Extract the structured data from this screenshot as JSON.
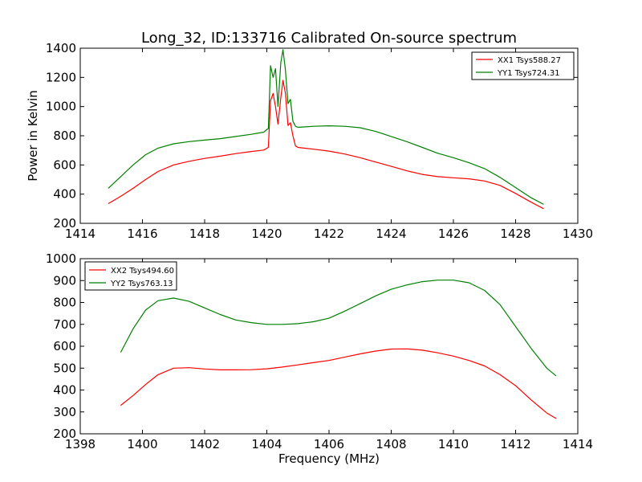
{
  "title": "Long_32, ID:133716 Calibrated On-source spectrum",
  "colors": {
    "xx": "#ff0000",
    "yy": "#008000",
    "axes": "#000000",
    "background": "#ffffff"
  },
  "chart_data": [
    {
      "type": "line",
      "title": "Long_32, ID:133716 Calibrated On-source spectrum",
      "xlabel": "",
      "ylabel": "Power in Kelvin",
      "xlim": [
        1414,
        1430
      ],
      "ylim": [
        200,
        1400
      ],
      "xticks": [
        "1414",
        "1416",
        "1418",
        "1420",
        "1422",
        "1424",
        "1426",
        "1428",
        "1430"
      ],
      "yticks": [
        "200",
        "400",
        "600",
        "800",
        "1000",
        "1200",
        "1400"
      ],
      "grid": false,
      "legend_position": "top-right",
      "series": [
        {
          "name": "XX1 Tsys588.27",
          "color": "#ff0000",
          "x": [
            1414.9,
            1415.3,
            1415.7,
            1416.1,
            1416.5,
            1417.0,
            1417.5,
            1418.0,
            1418.5,
            1419.0,
            1419.5,
            1419.9,
            1420.05,
            1420.12,
            1420.2,
            1420.28,
            1420.36,
            1420.45,
            1420.52,
            1420.6,
            1420.68,
            1420.76,
            1420.84,
            1420.92,
            1421.0,
            1421.5,
            1422.0,
            1422.5,
            1423.0,
            1423.5,
            1424.0,
            1424.5,
            1425.0,
            1425.5,
            1426.0,
            1426.5,
            1427.0,
            1427.5,
            1428.0,
            1428.5,
            1428.9
          ],
          "y": [
            335,
            385,
            440,
            500,
            555,
            600,
            625,
            645,
            660,
            678,
            692,
            702,
            720,
            1040,
            1090,
            1000,
            880,
            1060,
            1180,
            1090,
            870,
            890,
            800,
            730,
            720,
            708,
            695,
            675,
            650,
            620,
            590,
            560,
            535,
            520,
            512,
            505,
            490,
            460,
            405,
            345,
            300
          ]
        },
        {
          "name": "YY1 Tsys724.31",
          "color": "#008000",
          "x": [
            1414.9,
            1415.3,
            1415.7,
            1416.1,
            1416.5,
            1417.0,
            1417.5,
            1418.0,
            1418.5,
            1419.0,
            1419.5,
            1419.9,
            1420.05,
            1420.12,
            1420.2,
            1420.28,
            1420.36,
            1420.45,
            1420.52,
            1420.6,
            1420.68,
            1420.76,
            1420.84,
            1420.92,
            1421.0,
            1421.5,
            1422.0,
            1422.5,
            1423.0,
            1423.5,
            1424.0,
            1424.5,
            1425.0,
            1425.5,
            1426.0,
            1426.5,
            1427.0,
            1427.5,
            1428.0,
            1428.5,
            1428.9
          ],
          "y": [
            440,
            520,
            600,
            670,
            715,
            745,
            760,
            770,
            780,
            795,
            810,
            825,
            850,
            1280,
            1200,
            1260,
            1000,
            1300,
            1390,
            1250,
            1020,
            1050,
            900,
            865,
            858,
            865,
            868,
            865,
            855,
            830,
            795,
            760,
            720,
            680,
            650,
            615,
            575,
            515,
            445,
            375,
            330
          ]
        }
      ]
    },
    {
      "type": "line",
      "title": "",
      "xlabel": "Frequency (MHz)",
      "ylabel": "",
      "xlim": [
        1398,
        1414
      ],
      "ylim": [
        200,
        1000
      ],
      "xticks": [
        "1398",
        "1400",
        "1402",
        "1404",
        "1406",
        "1408",
        "1410",
        "1412",
        "1414"
      ],
      "yticks": [
        "200",
        "300",
        "400",
        "500",
        "600",
        "700",
        "800",
        "900",
        "1000"
      ],
      "grid": false,
      "legend_position": "top-left",
      "series": [
        {
          "name": "XX2 Tsys494.60",
          "color": "#ff0000",
          "x": [
            1399.3,
            1399.7,
            1400.1,
            1400.5,
            1401.0,
            1401.5,
            1402.0,
            1402.5,
            1403.0,
            1403.5,
            1404.0,
            1404.5,
            1405.0,
            1405.5,
            1406.0,
            1406.5,
            1407.0,
            1407.5,
            1408.0,
            1408.5,
            1409.0,
            1409.5,
            1410.0,
            1410.5,
            1411.0,
            1411.5,
            1412.0,
            1412.5,
            1413.0,
            1413.3
          ],
          "y": [
            330,
            375,
            425,
            470,
            500,
            502,
            496,
            492,
            492,
            493,
            497,
            505,
            515,
            525,
            535,
            550,
            565,
            578,
            587,
            588,
            582,
            570,
            555,
            535,
            510,
            470,
            420,
            355,
            295,
            270
          ]
        },
        {
          "name": "YY2 Tsys763.13",
          "color": "#008000",
          "x": [
            1399.3,
            1399.7,
            1400.1,
            1400.5,
            1401.0,
            1401.5,
            1402.0,
            1402.5,
            1403.0,
            1403.5,
            1404.0,
            1404.5,
            1405.0,
            1405.5,
            1406.0,
            1406.5,
            1407.0,
            1407.5,
            1408.0,
            1408.5,
            1409.0,
            1409.5,
            1410.0,
            1410.5,
            1411.0,
            1411.5,
            1412.0,
            1412.5,
            1413.0,
            1413.3
          ],
          "y": [
            572,
            680,
            765,
            808,
            820,
            805,
            775,
            745,
            720,
            708,
            700,
            700,
            703,
            712,
            728,
            760,
            795,
            830,
            860,
            880,
            895,
            902,
            902,
            890,
            855,
            790,
            690,
            590,
            500,
            465
          ]
        }
      ]
    }
  ]
}
